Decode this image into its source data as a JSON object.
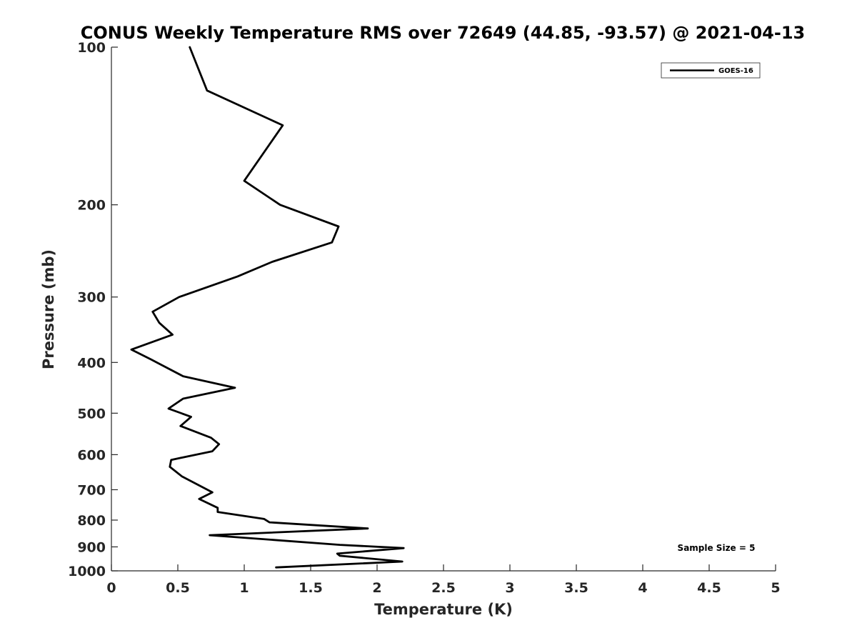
{
  "chart_data": {
    "type": "line",
    "title": "CONUS Weekly Temperature RMS over 72649 (44.85, -93.57) @ 2021-04-13",
    "xlabel": "Temperature (K)",
    "ylabel": "Pressure (mb)",
    "xlim": [
      0,
      5
    ],
    "ylim": [
      1000,
      100
    ],
    "y_scale": "log",
    "y_reversed": true,
    "x_ticks": [
      0,
      0.5,
      1,
      1.5,
      2,
      2.5,
      3,
      3.5,
      4,
      4.5,
      5
    ],
    "x_tick_labels": [
      "0",
      "0.5",
      "1",
      "1.5",
      "2",
      "2.5",
      "3",
      "3.5",
      "4",
      "4.5",
      "5"
    ],
    "y_ticks": [
      100,
      200,
      300,
      400,
      500,
      600,
      700,
      800,
      900,
      1000
    ],
    "y_tick_labels": [
      "100",
      "200",
      "300",
      "400",
      "500",
      "600",
      "700",
      "800",
      "900",
      "1000"
    ],
    "grid": false,
    "legend": {
      "position": "top-right",
      "entries": [
        "GOES-16"
      ]
    },
    "annotation": "Sample Size = 5",
    "series": [
      {
        "name": "GOES-16",
        "color": "#000000",
        "points": [
          [
            0.59,
            100
          ],
          [
            0.72,
            121
          ],
          [
            1.29,
            141
          ],
          [
            1.0,
            180
          ],
          [
            1.27,
            200
          ],
          [
            1.71,
            220
          ],
          [
            1.66,
            236
          ],
          [
            1.21,
            257
          ],
          [
            0.95,
            274
          ],
          [
            0.51,
            300
          ],
          [
            0.31,
            320
          ],
          [
            0.36,
            336
          ],
          [
            0.46,
            354
          ],
          [
            0.15,
            378
          ],
          [
            0.3,
            395
          ],
          [
            0.54,
            425
          ],
          [
            0.93,
            447
          ],
          [
            0.54,
            469
          ],
          [
            0.43,
            490
          ],
          [
            0.6,
            508
          ],
          [
            0.52,
            529
          ],
          [
            0.75,
            557
          ],
          [
            0.81,
            573
          ],
          [
            0.76,
            591
          ],
          [
            0.45,
            614
          ],
          [
            0.44,
            633
          ],
          [
            0.53,
            660
          ],
          [
            0.76,
            708
          ],
          [
            0.66,
            729
          ],
          [
            0.8,
            758
          ],
          [
            0.8,
            772
          ],
          [
            1.15,
            796
          ],
          [
            1.19,
            808
          ],
          [
            1.93,
            830
          ],
          [
            0.74,
            855
          ],
          [
            1.72,
            892
          ],
          [
            2.2,
            905
          ],
          [
            1.7,
            927
          ],
          [
            1.72,
            936
          ],
          [
            2.19,
            960
          ],
          [
            1.24,
            985
          ]
        ]
      }
    ]
  }
}
